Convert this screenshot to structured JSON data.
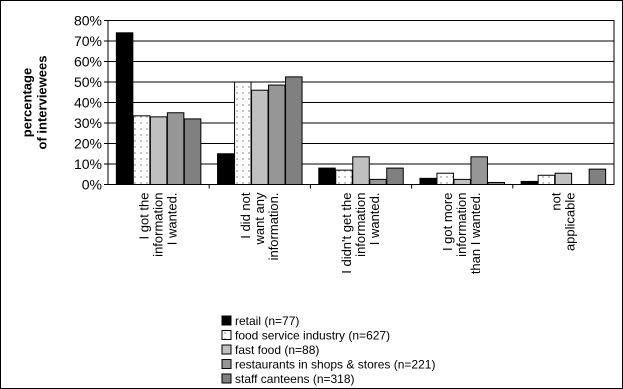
{
  "chart_data": {
    "type": "bar",
    "ylabel_lines": [
      "percentage",
      "of interviewees"
    ],
    "ylim": [
      0,
      80
    ],
    "yticks": [
      0,
      10,
      20,
      30,
      40,
      50,
      60,
      70,
      80
    ],
    "ytick_labels": [
      "0%",
      "10%",
      "20%",
      "30%",
      "40%",
      "50%",
      "60%",
      "70%",
      "80%"
    ],
    "grid": true,
    "legend_position": "bottom",
    "categories": [
      {
        "lines": [
          "I got the",
          "information",
          "I wanted."
        ]
      },
      {
        "lines": [
          "I did not",
          "want any",
          "information."
        ]
      },
      {
        "lines": [
          "I didn't get the",
          "information",
          "I wanted."
        ]
      },
      {
        "lines": [
          "I got more",
          "information",
          "than I wanted."
        ]
      },
      {
        "lines": [
          "not",
          "applicable"
        ]
      }
    ],
    "series": [
      {
        "name": "retail (n=77)",
        "color": "#000000",
        "pattern": "solid",
        "values": [
          74,
          15,
          8,
          3,
          1.5
        ]
      },
      {
        "name": "food service industry (n=627)",
        "color": "#ffffff",
        "pattern": "dots",
        "values": [
          33.5,
          50,
          7,
          5.5,
          4.5
        ]
      },
      {
        "name": "fast food (n=88)",
        "color": "#c0c0c0",
        "pattern": "solid",
        "values": [
          33,
          46,
          13.5,
          2.5,
          5.5
        ]
      },
      {
        "name": "restaurants in shops & stores (n=221)",
        "color": "#969696",
        "pattern": "solid",
        "values": [
          35,
          48.5,
          2.5,
          13.5,
          0
        ]
      },
      {
        "name": "staff canteens (n=318)",
        "color": "#808080",
        "pattern": "solid",
        "values": [
          32,
          52.5,
          8,
          1,
          7.5
        ]
      }
    ]
  }
}
